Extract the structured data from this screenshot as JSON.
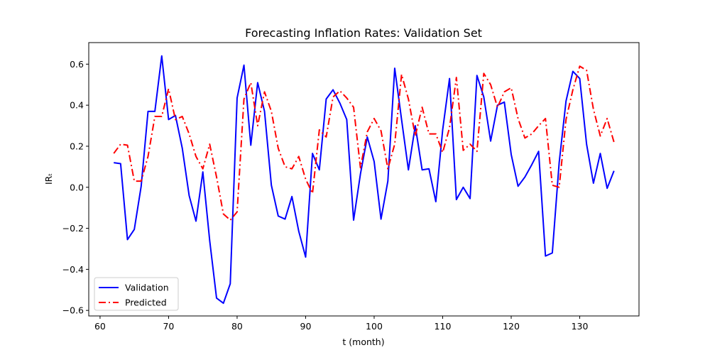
{
  "chart_data": {
    "type": "line",
    "title": "Forecasting Inflation Rates: Validation Set",
    "xlabel": "t (month)",
    "ylabel": "IRₜ",
    "xlim": [
      58.35,
      138.65
    ],
    "ylim": [
      -0.627,
      0.705
    ],
    "xticks": [
      60,
      70,
      80,
      90,
      100,
      110,
      120,
      130
    ],
    "yticks": [
      -0.6,
      -0.4,
      -0.2,
      0.0,
      0.2,
      0.4,
      0.6
    ],
    "xtick_labels": [
      "60",
      "70",
      "80",
      "90",
      "100",
      "110",
      "120",
      "130"
    ],
    "ytick_labels": [
      "−0.6",
      "−0.4",
      "−0.2",
      "0.0",
      "0.2",
      "0.4",
      "0.6"
    ],
    "legend_position": "lower-left",
    "grid": false,
    "x": [
      62,
      63,
      64,
      65,
      66,
      67,
      68,
      69,
      70,
      71,
      72,
      73,
      74,
      75,
      76,
      77,
      78,
      79,
      80,
      81,
      82,
      83,
      84,
      85,
      86,
      87,
      88,
      89,
      90,
      91,
      92,
      93,
      94,
      95,
      96,
      97,
      98,
      99,
      100,
      101,
      102,
      103,
      104,
      105,
      106,
      107,
      108,
      109,
      110,
      111,
      112,
      113,
      114,
      115,
      116,
      117,
      118,
      119,
      120,
      121,
      122,
      123,
      124,
      125,
      126,
      127,
      128,
      129,
      130,
      131,
      132,
      133,
      134,
      135
    ],
    "series": [
      {
        "name": "Validation",
        "color": "#0000ff",
        "style": "solid",
        "values": [
          0.12,
          0.115,
          -0.255,
          -0.205,
          0.005,
          0.37,
          0.37,
          0.64,
          0.33,
          0.35,
          0.19,
          -0.04,
          -0.165,
          0.075,
          -0.26,
          -0.54,
          -0.565,
          -0.47,
          0.435,
          0.595,
          0.205,
          0.51,
          0.37,
          0.01,
          -0.14,
          -0.155,
          -0.045,
          -0.215,
          -0.34,
          0.165,
          0.085,
          0.43,
          0.475,
          0.41,
          0.33,
          -0.16,
          0.065,
          0.245,
          0.125,
          -0.155,
          0.03,
          0.58,
          0.33,
          0.085,
          0.3,
          0.085,
          0.09,
          -0.07,
          0.28,
          0.53,
          -0.06,
          0.0,
          -0.055,
          0.545,
          0.44,
          0.225,
          0.4,
          0.415,
          0.16,
          0.005,
          0.05,
          0.11,
          0.175,
          -0.335,
          -0.32,
          0.12,
          0.42,
          0.565,
          0.53,
          0.21,
          0.02,
          0.165,
          -0.005,
          0.08
        ]
      },
      {
        "name": "Predicted",
        "color": "#ff0000",
        "style": "dashdot",
        "values": [
          0.165,
          0.21,
          0.205,
          0.03,
          0.03,
          0.15,
          0.345,
          0.345,
          0.48,
          0.33,
          0.345,
          0.26,
          0.15,
          0.09,
          0.21,
          0.05,
          -0.13,
          -0.16,
          -0.12,
          0.43,
          0.51,
          0.3,
          0.465,
          0.37,
          0.19,
          0.1,
          0.09,
          0.15,
          0.04,
          -0.03,
          0.28,
          0.245,
          0.44,
          0.47,
          0.435,
          0.39,
          0.095,
          0.27,
          0.335,
          0.275,
          0.09,
          0.21,
          0.55,
          0.43,
          0.25,
          0.39,
          0.26,
          0.26,
          0.17,
          0.29,
          0.535,
          0.18,
          0.21,
          0.175,
          0.555,
          0.5,
          0.39,
          0.465,
          0.485,
          0.335,
          0.24,
          0.26,
          0.3,
          0.335,
          0.01,
          0.0,
          0.33,
          0.475,
          0.59,
          0.57,
          0.38,
          0.25,
          0.335,
          0.22
        ]
      }
    ]
  }
}
